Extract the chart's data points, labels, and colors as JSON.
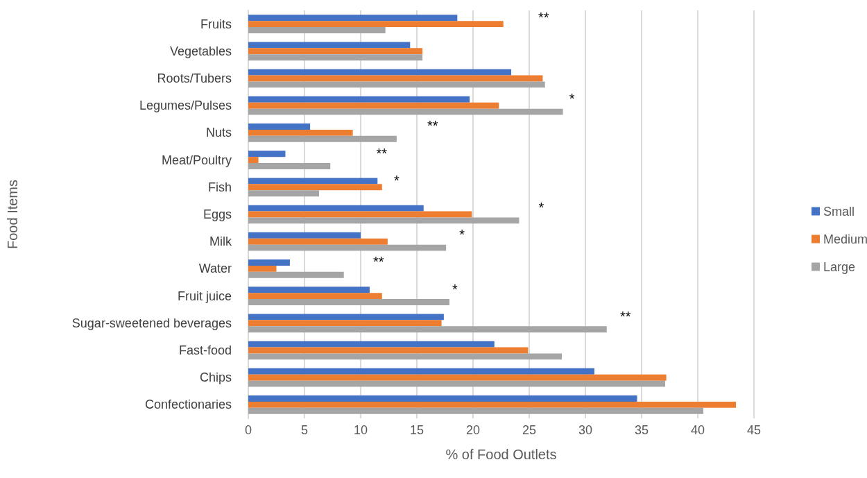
{
  "chart_data": {
    "type": "bar",
    "orientation": "horizontal",
    "xlabel": "% of Food Outlets",
    "ylabel": "Food Items",
    "categories": [
      "Fruits",
      "Vegetables",
      "Roots/Tubers",
      "Legumes/Pulses",
      "Nuts",
      "Meat/Poultry",
      "Fish",
      "Eggs",
      "Milk",
      "Water",
      "Fruit juice",
      "Sugar-sweetened beverages",
      "Fast-food",
      "Chips",
      "Confectionaries"
    ],
    "series": [
      {
        "name": "Small",
        "color": "#4472c4",
        "values": [
          18.6,
          14.4,
          23.4,
          19.7,
          5.5,
          3.3,
          11.5,
          15.6,
          10.0,
          3.7,
          10.8,
          17.4,
          21.9,
          30.8,
          34.6
        ]
      },
      {
        "name": "Medium",
        "color": "#ed7d31",
        "values": [
          22.7,
          15.5,
          26.2,
          22.3,
          9.3,
          0.9,
          11.9,
          19.9,
          12.4,
          2.5,
          11.9,
          17.2,
          24.9,
          37.2,
          43.4
        ]
      },
      {
        "name": "Large",
        "color": "#a5a5a5",
        "values": [
          12.2,
          15.5,
          26.4,
          28.0,
          13.2,
          7.3,
          6.3,
          24.1,
          17.6,
          8.5,
          17.9,
          31.9,
          27.9,
          37.1,
          40.5
        ]
      }
    ],
    "xlim": [
      0,
      45
    ],
    "xticks": [
      0,
      5,
      10,
      15,
      20,
      25,
      30,
      35,
      40,
      45
    ],
    "grid": "x",
    "legend": "right",
    "annotations": [
      "**",
      "*",
      "**",
      "**",
      "*",
      "*",
      "*",
      "**",
      "*",
      "**"
    ]
  }
}
